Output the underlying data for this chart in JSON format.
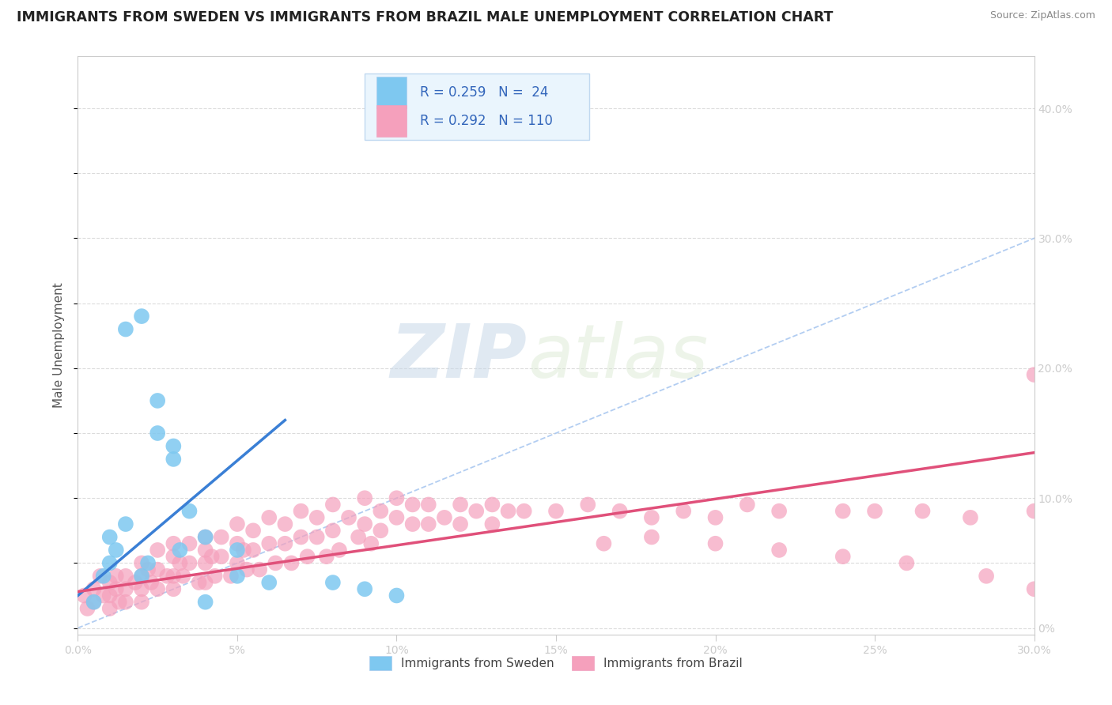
{
  "title": "IMMIGRANTS FROM SWEDEN VS IMMIGRANTS FROM BRAZIL MALE UNEMPLOYMENT CORRELATION CHART",
  "source": "Source: ZipAtlas.com",
  "ylabel": "Male Unemployment",
  "xlim": [
    0.0,
    0.3
  ],
  "ylim": [
    -0.005,
    0.44
  ],
  "sweden_R": 0.259,
  "sweden_N": 24,
  "brazil_R": 0.292,
  "brazil_N": 110,
  "sweden_color": "#7ec8f0",
  "brazil_color": "#f5a0bc",
  "sweden_line_color": "#3a7fd5",
  "brazil_line_color": "#e0507a",
  "diagonal_color": "#aac8f0",
  "background_color": "#ffffff",
  "grid_color": "#d8d8d8",
  "watermark_zip": "ZIP",
  "watermark_atlas": "atlas",
  "legend_box_color": "#eaf5fd",
  "legend_border_color": "#c0d8f0",
  "sweden_scatter_x": [
    0.005,
    0.008,
    0.01,
    0.01,
    0.012,
    0.015,
    0.015,
    0.02,
    0.02,
    0.022,
    0.025,
    0.025,
    0.03,
    0.03,
    0.032,
    0.035,
    0.04,
    0.04,
    0.05,
    0.05,
    0.06,
    0.08,
    0.09,
    0.1
  ],
  "sweden_scatter_y": [
    0.02,
    0.04,
    0.05,
    0.07,
    0.06,
    0.08,
    0.23,
    0.24,
    0.04,
    0.05,
    0.175,
    0.15,
    0.14,
    0.13,
    0.06,
    0.09,
    0.07,
    0.02,
    0.06,
    0.04,
    0.035,
    0.035,
    0.03,
    0.025
  ],
  "brazil_scatter_x": [
    0.002,
    0.003,
    0.005,
    0.005,
    0.007,
    0.008,
    0.01,
    0.01,
    0.01,
    0.012,
    0.012,
    0.013,
    0.015,
    0.015,
    0.015,
    0.018,
    0.02,
    0.02,
    0.02,
    0.02,
    0.022,
    0.023,
    0.025,
    0.025,
    0.025,
    0.028,
    0.03,
    0.03,
    0.03,
    0.03,
    0.032,
    0.033,
    0.035,
    0.035,
    0.038,
    0.04,
    0.04,
    0.04,
    0.04,
    0.042,
    0.043,
    0.045,
    0.045,
    0.048,
    0.05,
    0.05,
    0.05,
    0.052,
    0.053,
    0.055,
    0.055,
    0.057,
    0.06,
    0.06,
    0.062,
    0.065,
    0.065,
    0.067,
    0.07,
    0.07,
    0.072,
    0.075,
    0.075,
    0.078,
    0.08,
    0.08,
    0.082,
    0.085,
    0.088,
    0.09,
    0.09,
    0.092,
    0.095,
    0.095,
    0.1,
    0.1,
    0.105,
    0.105,
    0.11,
    0.11,
    0.115,
    0.12,
    0.12,
    0.125,
    0.13,
    0.13,
    0.135,
    0.14,
    0.15,
    0.16,
    0.17,
    0.18,
    0.19,
    0.2,
    0.21,
    0.22,
    0.24,
    0.25,
    0.265,
    0.28,
    0.3,
    0.3,
    0.3,
    0.285,
    0.26,
    0.24,
    0.22,
    0.2,
    0.18,
    0.165
  ],
  "brazil_scatter_y": [
    0.025,
    0.015,
    0.03,
    0.02,
    0.04,
    0.025,
    0.035,
    0.025,
    0.015,
    0.04,
    0.03,
    0.02,
    0.04,
    0.03,
    0.02,
    0.035,
    0.05,
    0.04,
    0.03,
    0.02,
    0.045,
    0.035,
    0.06,
    0.045,
    0.03,
    0.04,
    0.065,
    0.055,
    0.04,
    0.03,
    0.05,
    0.04,
    0.065,
    0.05,
    0.035,
    0.07,
    0.06,
    0.05,
    0.035,
    0.055,
    0.04,
    0.07,
    0.055,
    0.04,
    0.08,
    0.065,
    0.05,
    0.06,
    0.045,
    0.075,
    0.06,
    0.045,
    0.085,
    0.065,
    0.05,
    0.08,
    0.065,
    0.05,
    0.09,
    0.07,
    0.055,
    0.085,
    0.07,
    0.055,
    0.095,
    0.075,
    0.06,
    0.085,
    0.07,
    0.1,
    0.08,
    0.065,
    0.09,
    0.075,
    0.1,
    0.085,
    0.095,
    0.08,
    0.095,
    0.08,
    0.085,
    0.095,
    0.08,
    0.09,
    0.095,
    0.08,
    0.09,
    0.09,
    0.09,
    0.095,
    0.09,
    0.085,
    0.09,
    0.085,
    0.095,
    0.09,
    0.09,
    0.09,
    0.09,
    0.085,
    0.09,
    0.03,
    0.195,
    0.04,
    0.05,
    0.055,
    0.06,
    0.065,
    0.07,
    0.065
  ],
  "sweden_trend_x0": 0.0,
  "sweden_trend_y0": 0.025,
  "sweden_trend_x1": 0.065,
  "sweden_trend_y1": 0.16,
  "brazil_trend_x0": 0.0,
  "brazil_trend_y0": 0.028,
  "brazil_trend_x1": 0.3,
  "brazil_trend_y1": 0.135
}
